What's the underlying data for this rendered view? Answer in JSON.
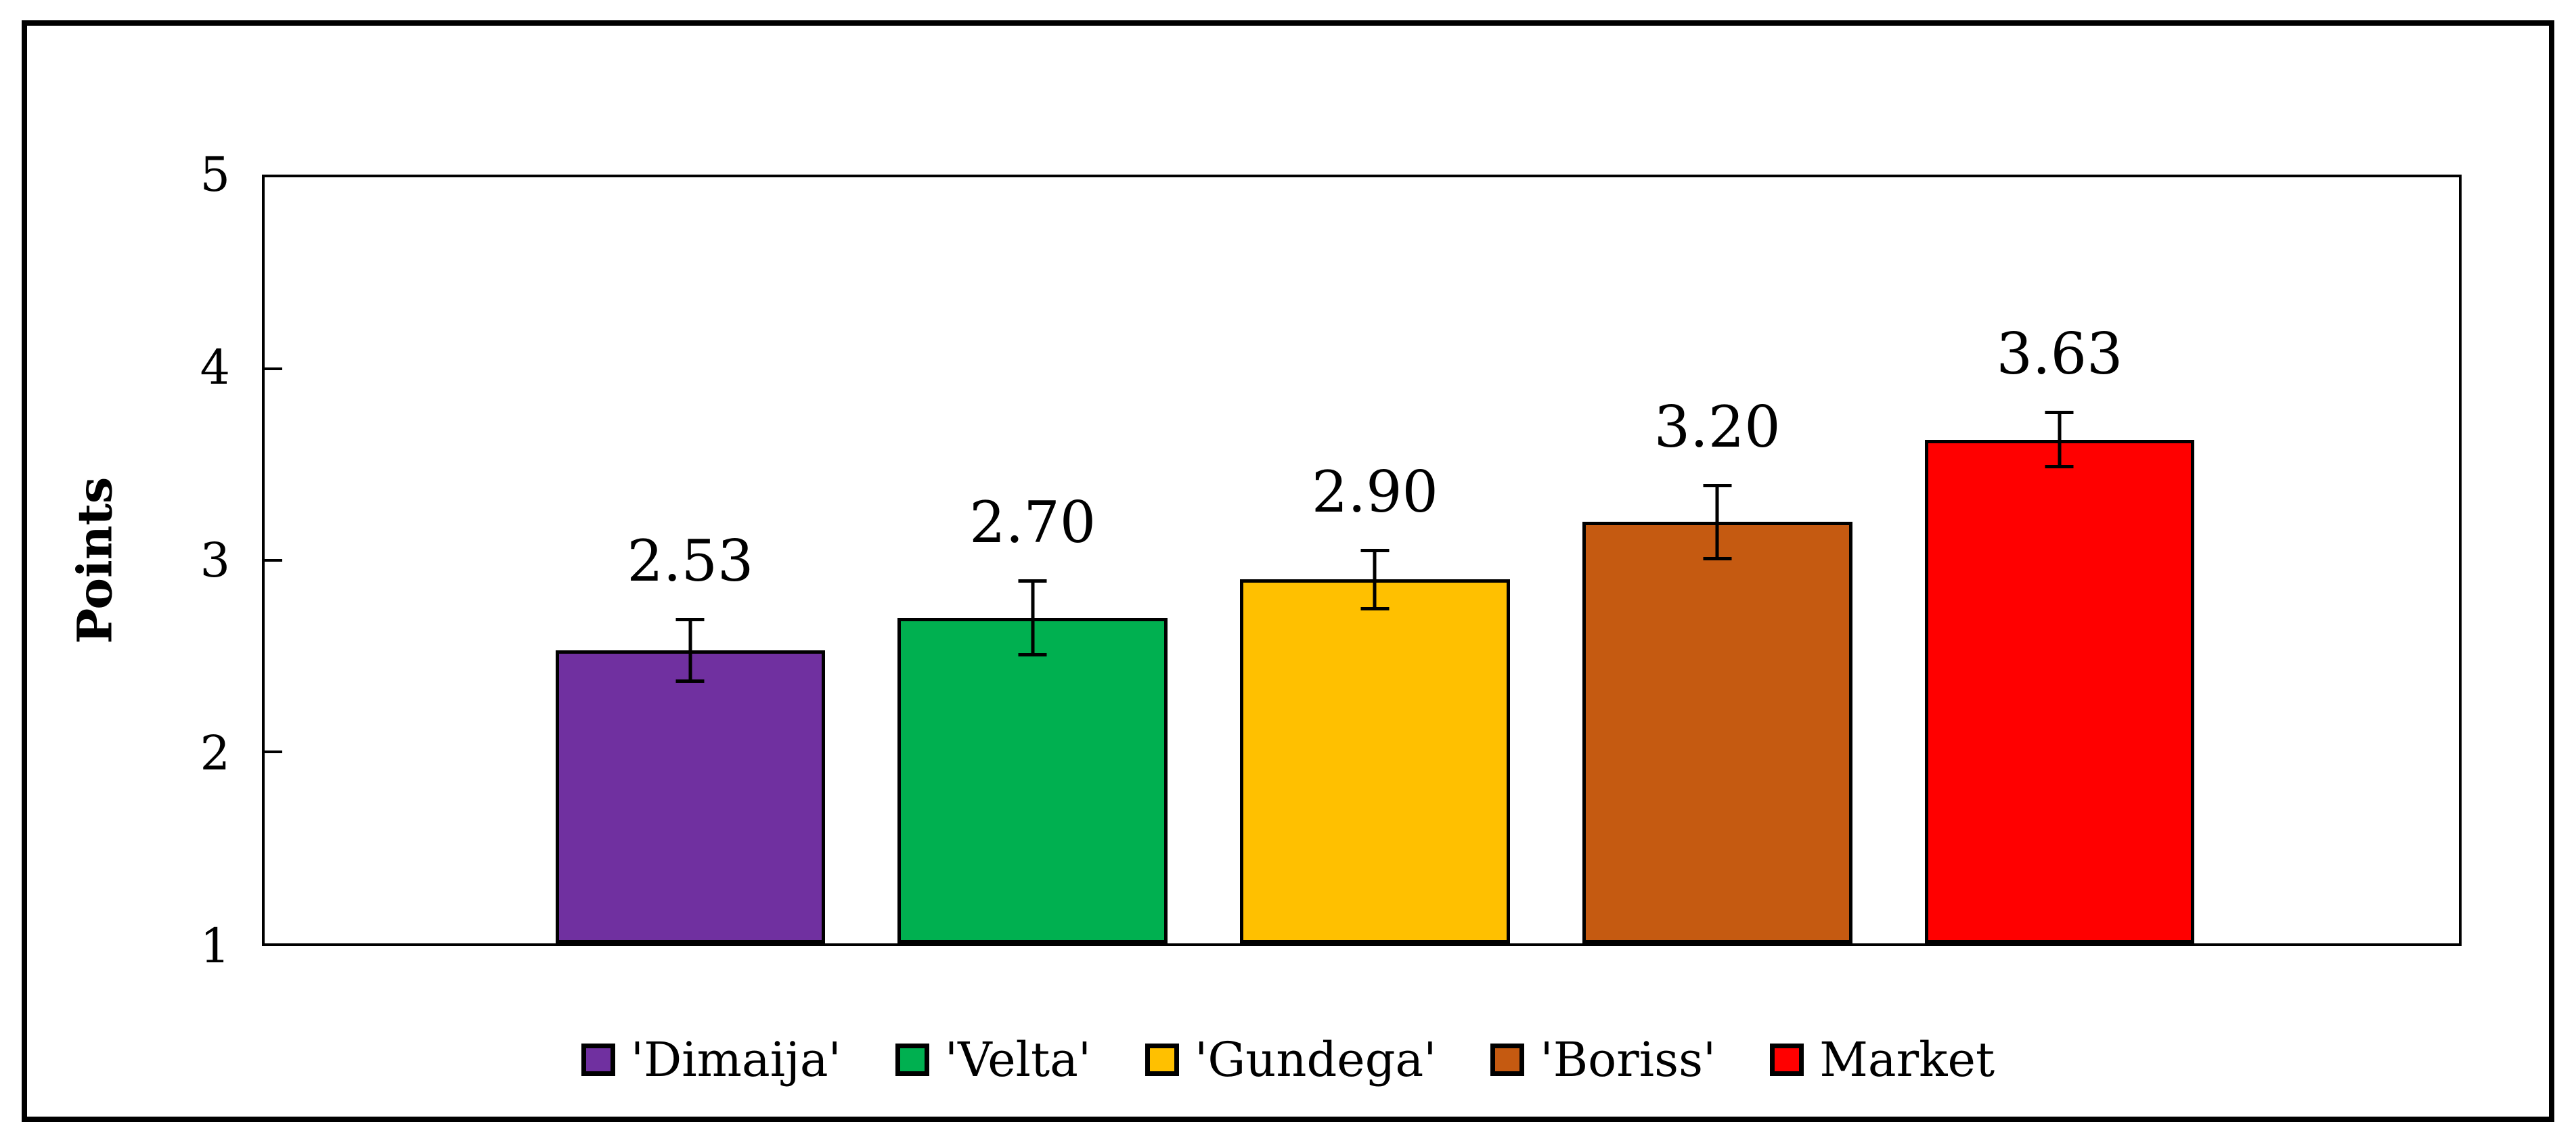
{
  "chart_data": {
    "type": "bar",
    "title": "",
    "ylabel": "Points",
    "xlabel": "",
    "ylim": [
      1,
      5
    ],
    "yticks": [
      5,
      4,
      3,
      2,
      1
    ],
    "grid": false,
    "legend_position": "bottom",
    "categories": [
      "'Dimaija'",
      "'Velta'",
      "'Gundega'",
      "'Boriss'",
      "Market"
    ],
    "values": [
      2.53,
      2.7,
      2.9,
      3.2,
      3.63
    ],
    "value_labels": [
      "2.53",
      "2.70",
      "2.90",
      "3.20",
      "3.63"
    ],
    "error_bars": [
      0.17,
      0.2,
      0.16,
      0.2,
      0.15
    ],
    "colors": [
      "#7030A0",
      "#00B050",
      "#FFC000",
      "#C55A11",
      "#FF0000"
    ],
    "bar_outline_color": "#000000",
    "axis_color": "#000000",
    "frame_color": "#000000",
    "background_color": "#FFFFFF"
  }
}
